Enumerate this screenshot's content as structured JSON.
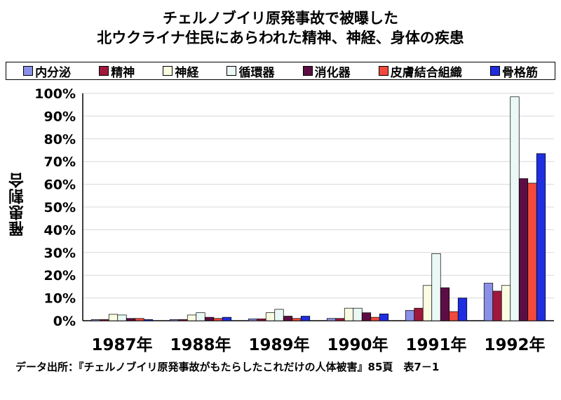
{
  "chart_data": {
    "type": "bar",
    "title": "チェルノブイリ原発事故で被曝した",
    "subtitle": "北ウクライナ住民にあらわれた精神、神経、身体の疾患",
    "ylabel": "罹患割合",
    "xlabel": "",
    "ylim": [
      0,
      100
    ],
    "yticks": [
      "0%",
      "10%",
      "20%",
      "30%",
      "40%",
      "50%",
      "60%",
      "70%",
      "80%",
      "90%",
      "100%"
    ],
    "categories": [
      "1987年",
      "1988年",
      "1989年",
      "1990年",
      "1991年",
      "1992年"
    ],
    "legend_position": "top",
    "grid": true,
    "series": [
      {
        "name": "内分泌",
        "color": "#8a90e6",
        "values": [
          0.5,
          0.5,
          0.8,
          1.0,
          4.5,
          16.5
        ]
      },
      {
        "name": "精神",
        "color": "#a0183c",
        "values": [
          0.5,
          0.5,
          0.8,
          1.0,
          5.5,
          13.0
        ]
      },
      {
        "name": "神経",
        "color": "#fbfde2",
        "values": [
          2.8,
          2.5,
          3.5,
          5.5,
          15.5,
          15.5
        ]
      },
      {
        "name": "循環器",
        "color": "#eaf8f6",
        "values": [
          2.5,
          3.5,
          5.0,
          5.5,
          29.5,
          98.5
        ]
      },
      {
        "name": "消化器",
        "color": "#5c0e44",
        "values": [
          1.0,
          1.5,
          2.0,
          3.5,
          14.5,
          62.5
        ]
      },
      {
        "name": "皮膚結合組織",
        "color": "#f24a3c",
        "values": [
          1.0,
          1.0,
          1.0,
          1.5,
          4.0,
          60.5
        ]
      },
      {
        "name": "骨格筋",
        "color": "#1f2ee0",
        "values": [
          0.5,
          1.5,
          2.0,
          3.0,
          10.0,
          73.5
        ]
      }
    ],
    "source": "データ出所：『チェルノブイリ原発事故がもたらしたこれだけの人体被害』85頁　表7－1"
  }
}
